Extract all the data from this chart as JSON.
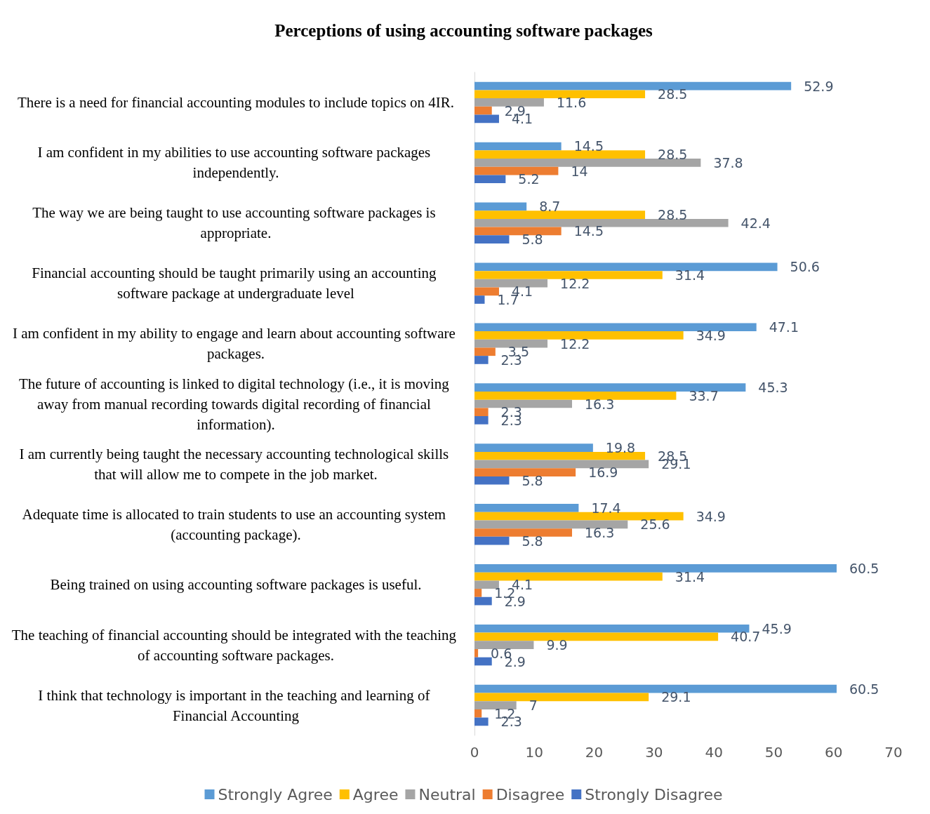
{
  "chart_data": {
    "type": "bar",
    "orientation": "horizontal",
    "title": "Perceptions of using accounting software packages",
    "categories": [
      "There is a need for financial accounting modules to include topics on 4IR.",
      "I am confident in my abilities to use accounting software packages independently.",
      "The way we are being taught to use accounting software packages is appropriate.",
      "Financial accounting should be taught primarily using an accounting software package at undergraduate level",
      "I am confident in my ability to engage and learn about accounting software packages.",
      "The future of accounting is linked to digital technology (i.e., it is moving away from manual recording towards digital recording of financial information).",
      "I am currently being taught the necessary accounting technological skills that will allow me to compete in the job market.",
      "Adequate time is allocated to train students to use an accounting system (accounting package).",
      "Being trained on using accounting software packages is useful.",
      "The teaching of financial accounting should be integrated with the teaching of accounting software packages.",
      "I think that technology is important in the teaching and learning of Financial Accounting"
    ],
    "series": [
      {
        "name": "Strongly Agree",
        "color": "#5b9bd5",
        "values": [
          52.9,
          14.5,
          8.7,
          50.6,
          47.1,
          45.3,
          19.8,
          17.4,
          60.5,
          45.9,
          60.5
        ]
      },
      {
        "name": "Agree",
        "color": "#ffc000",
        "values": [
          28.5,
          28.5,
          28.5,
          31.4,
          34.9,
          33.7,
          28.5,
          34.9,
          31.4,
          40.7,
          29.1
        ]
      },
      {
        "name": "Neutral",
        "color": "#a5a5a5",
        "values": [
          11.6,
          37.8,
          42.4,
          12.2,
          12.2,
          16.3,
          29.1,
          25.6,
          4.1,
          9.9,
          7
        ]
      },
      {
        "name": "Disagree",
        "color": "#ed7d31",
        "values": [
          2.9,
          14,
          14.5,
          4.1,
          3.5,
          2.3,
          16.9,
          16.3,
          1.2,
          0.6,
          1.2
        ]
      },
      {
        "name": "Strongly Disagree",
        "color": "#4472c4",
        "values": [
          4.1,
          5.2,
          5.8,
          1.7,
          2.3,
          2.3,
          5.8,
          5.8,
          2.9,
          2.9,
          2.3
        ]
      }
    ],
    "xlim": [
      0,
      70
    ],
    "xticks": [
      0,
      10,
      20,
      30,
      40,
      50,
      60,
      70
    ],
    "data_labels": true,
    "grid": false,
    "legend": "bottom"
  }
}
